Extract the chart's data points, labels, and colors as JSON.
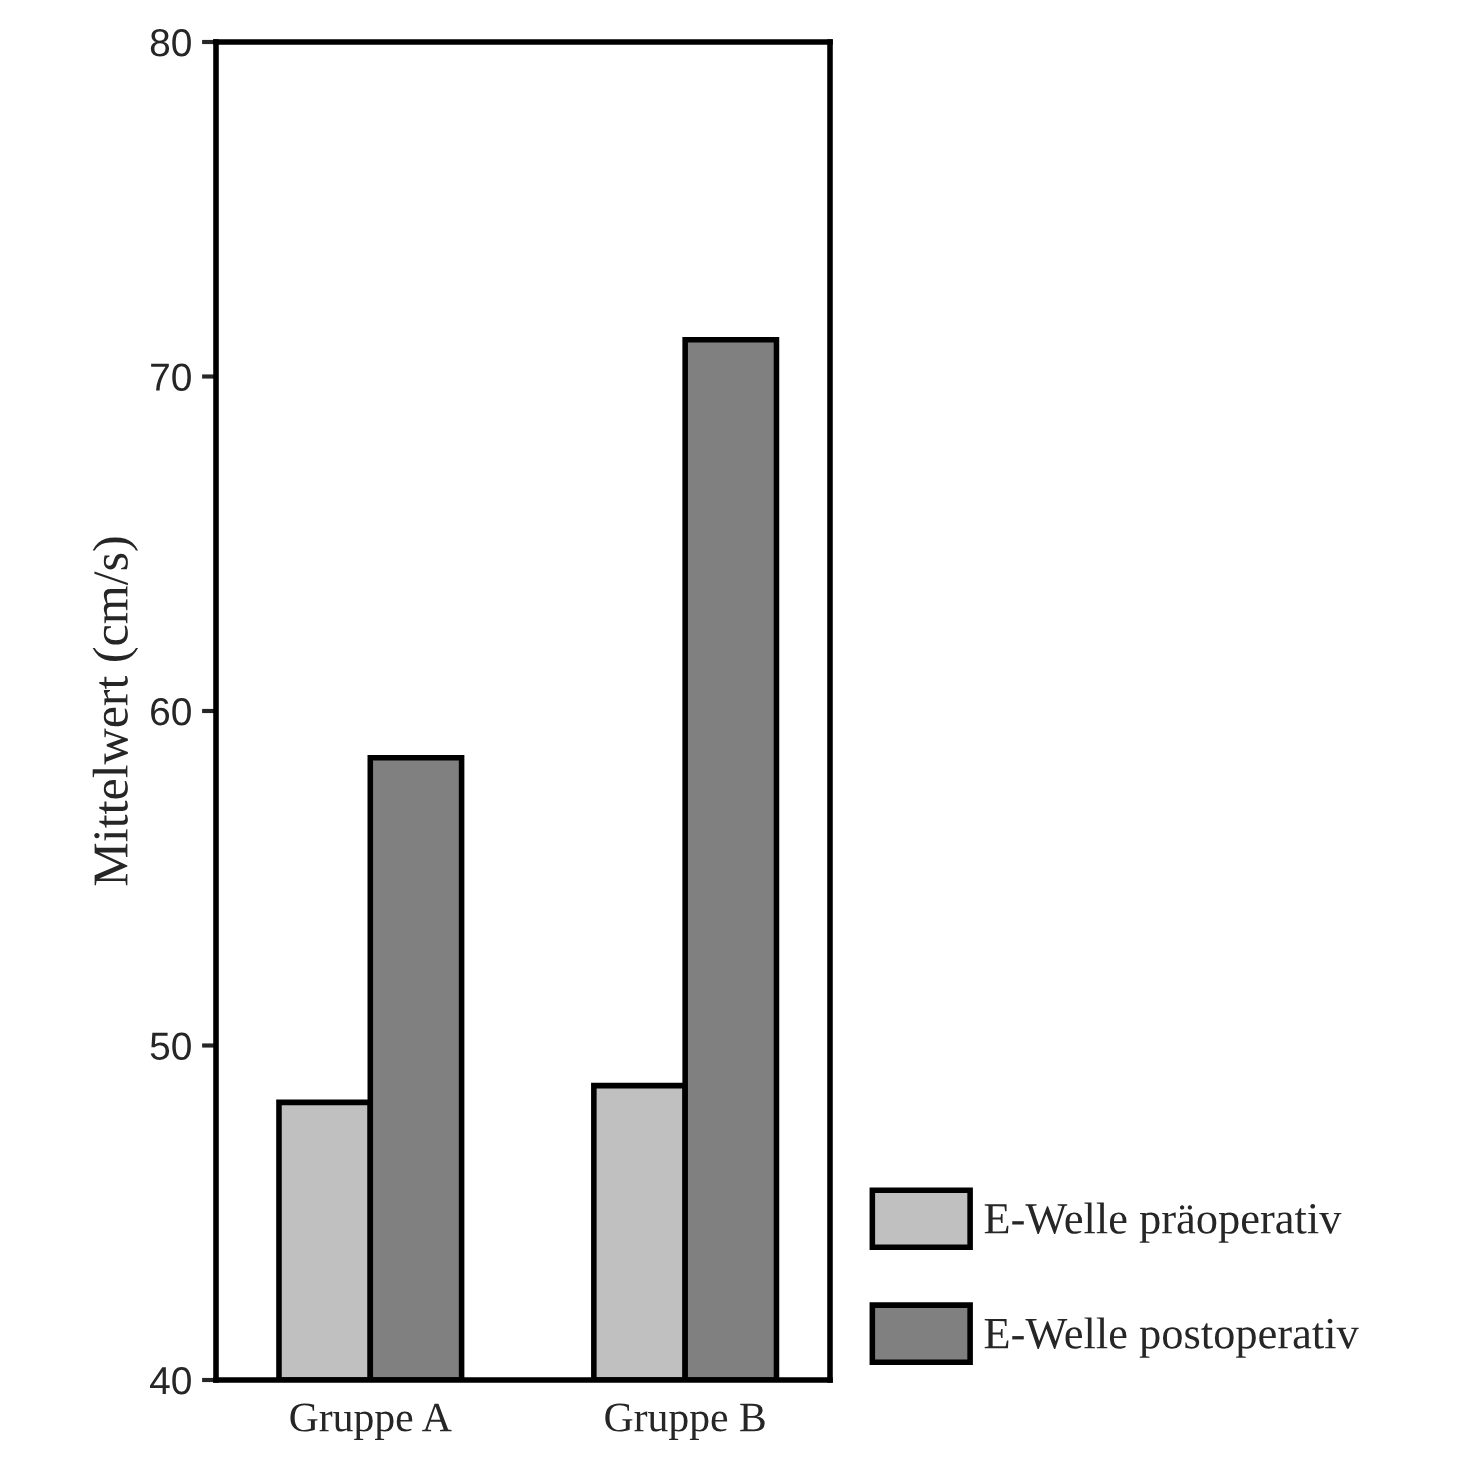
{
  "chart_data": {
    "type": "bar",
    "ylabel": "Mittelwert (cm/s)",
    "categories": [
      "Gruppe A",
      "Gruppe B"
    ],
    "series": [
      {
        "name": "E-Welle präoperativ",
        "color": "#c0c0c0",
        "values": [
          48.3,
          48.8
        ]
      },
      {
        "name": "E-Welle postoperativ",
        "color": "#808080",
        "values": [
          58.6,
          71.1
        ]
      }
    ],
    "ylim": [
      40,
      80
    ],
    "yticks": [
      40,
      50,
      60,
      70,
      80
    ],
    "grid": false,
    "legend": "right"
  }
}
